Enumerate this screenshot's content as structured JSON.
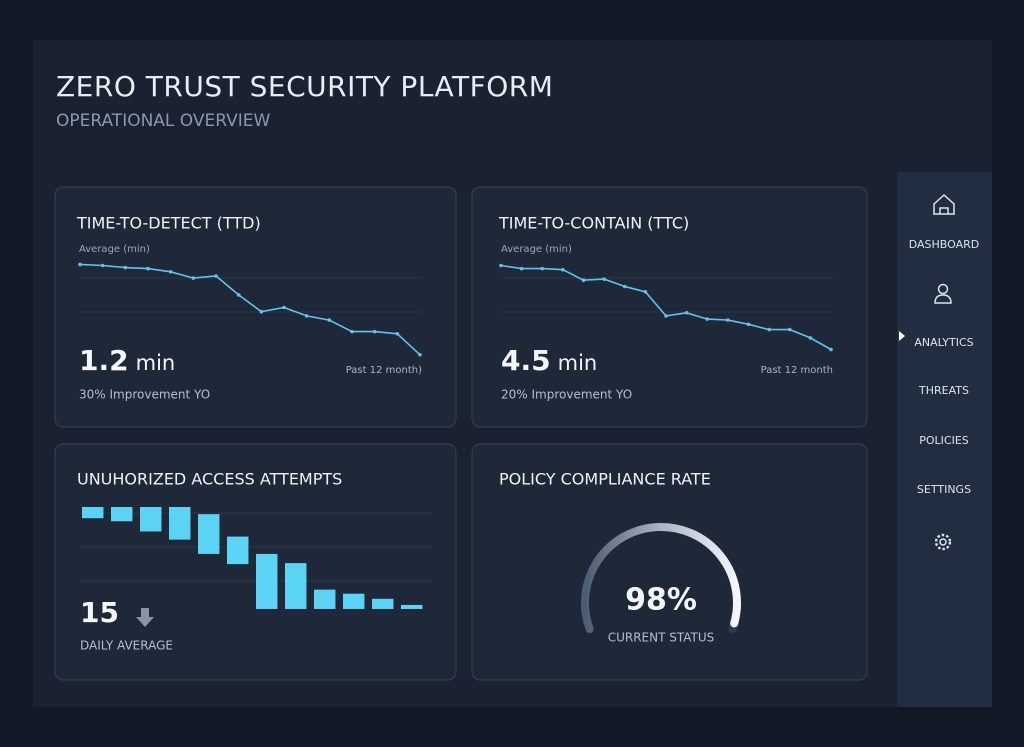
{
  "header": {
    "title": "ZERO TRUST SECURITY PLATFORM",
    "subtitle": "OPERATIONAL OVERVIEW"
  },
  "cards": [
    {
      "title": "TIME-TO-DETECT (TTD)",
      "caption": "Average (min)",
      "value": "1.2",
      "unit": "min",
      "note": "30% Improvement YO",
      "period": "Past 12 month)",
      "chart": {
        "type": "line",
        "color": "#62c3ea",
        "ylim": [
          0,
          100
        ],
        "values": [
          91,
          90,
          88,
          87,
          84,
          78,
          80,
          62,
          46,
          50,
          42,
          38,
          27,
          27,
          25,
          5
        ]
      }
    },
    {
      "title": "TIME-TO-CONTAIN (TTC)",
      "caption": "Average (min)",
      "value": "4.5",
      "unit": "min",
      "note": "20% Improvement YO",
      "period": "Past 12 month",
      "chart": {
        "type": "line",
        "color": "#62c3ea",
        "ylim": [
          0,
          100
        ],
        "values": [
          90,
          87,
          87,
          86,
          76,
          77,
          70,
          65,
          42,
          45,
          39,
          38,
          34,
          29,
          29,
          21,
          10
        ]
      }
    },
    {
      "title": "UNUHORIZED ACCESS ATTEMPTS",
      "value": "15",
      "note": "DAILY AVERAGE",
      "chart": {
        "type": "floating-bar",
        "color": "#5bd3f4",
        "ylim": [
          0,
          100
        ],
        "ranges": [
          [
            0,
            11
          ],
          [
            0,
            14
          ],
          [
            0,
            24
          ],
          [
            0,
            32
          ],
          [
            7,
            46
          ],
          [
            29,
            56
          ],
          [
            46,
            100
          ],
          [
            55,
            100
          ],
          [
            81,
            100
          ],
          [
            85,
            100
          ],
          [
            90,
            100
          ],
          [
            96,
            100
          ]
        ]
      }
    },
    {
      "title": "POLICY COMPLIANCE RATE",
      "note": "CURRENT STATUS",
      "chart": {
        "type": "gauge",
        "color": "#eef2f6",
        "ylim": [
          0,
          100
        ],
        "value": 98,
        "value_label": "98%"
      }
    }
  ],
  "nav": {
    "items": [
      "DASHBOARD",
      "ANALYTICS",
      "THREATS",
      "POLICIES",
      "SETTINGS"
    ],
    "active": 1
  }
}
